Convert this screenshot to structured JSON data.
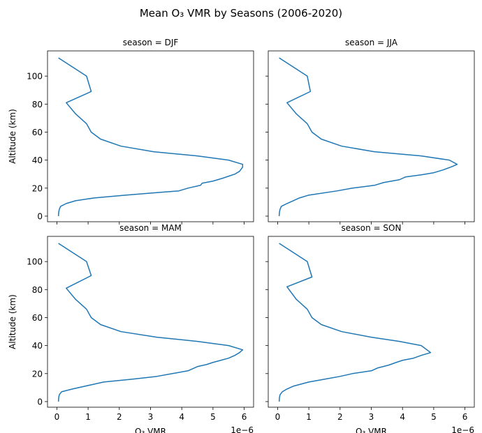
{
  "title": "Mean O₃ VMR by Seasons (2006-2020)",
  "colors": {
    "series": "#1f77b4",
    "axes": "#000000",
    "background": "#ffffff"
  },
  "chart_data": {
    "type": "line",
    "layout": "2x2 facet grid, shared x and y axes",
    "xlabel": "O₃ VMR",
    "ylabel": "Altitude (km)",
    "x_offset_text": "1e−6",
    "xlim": [
      -3e-07,
      6.3e-06
    ],
    "ylim": [
      -4,
      118
    ],
    "x_ticks": [
      0,
      1e-06,
      2e-06,
      3e-06,
      4e-06,
      5e-06,
      6e-06
    ],
    "x_tick_labels": [
      "0",
      "1",
      "2",
      "3",
      "4",
      "5",
      "6"
    ],
    "y_ticks": [
      0,
      20,
      40,
      60,
      80,
      100
    ],
    "y_tick_labels": [
      "0",
      "20",
      "40",
      "60",
      "80",
      "100"
    ],
    "grid": false,
    "panels": [
      {
        "title": "season = DJF",
        "points": [
          [
            5e-08,
            0
          ],
          [
            6e-08,
            3
          ],
          [
            8e-08,
            5
          ],
          [
            1.2e-07,
            7
          ],
          [
            3e-07,
            9
          ],
          [
            6e-07,
            11
          ],
          [
            1.2e-06,
            13
          ],
          [
            2.2e-06,
            15
          ],
          [
            3.3e-06,
            17
          ],
          [
            3.9e-06,
            18
          ],
          [
            4.2e-06,
            20
          ],
          [
            4.6e-06,
            22
          ],
          [
            4.65e-06,
            23.5
          ],
          [
            5e-06,
            25
          ],
          [
            5.3e-06,
            27
          ],
          [
            5.5e-06,
            28.5
          ],
          [
            5.7e-06,
            30
          ],
          [
            5.85e-06,
            32
          ],
          [
            5.95e-06,
            35
          ],
          [
            5.95e-06,
            37
          ],
          [
            5.5e-06,
            40
          ],
          [
            4.5e-06,
            43
          ],
          [
            3.1e-06,
            46
          ],
          [
            2.05e-06,
            50
          ],
          [
            1.4e-06,
            55
          ],
          [
            1.1e-06,
            60
          ],
          [
            9.5e-07,
            66
          ],
          [
            6e-07,
            73
          ],
          [
            3e-07,
            81
          ],
          [
            1.1e-06,
            89
          ],
          [
            9.5e-07,
            100
          ],
          [
            5e-08,
            113
          ]
        ]
      },
      {
        "title": "season = JJA",
        "points": [
          [
            5e-08,
            0
          ],
          [
            6e-08,
            3
          ],
          [
            8e-08,
            5
          ],
          [
            1.2e-07,
            7
          ],
          [
            3e-07,
            9
          ],
          [
            5e-07,
            11
          ],
          [
            7e-07,
            13
          ],
          [
            1e-06,
            15
          ],
          [
            1.9e-06,
            18
          ],
          [
            2.4e-06,
            20
          ],
          [
            3.1e-06,
            22
          ],
          [
            3.4e-06,
            24
          ],
          [
            3.9e-06,
            26
          ],
          [
            4.1e-06,
            28
          ],
          [
            4.6e-06,
            29.5
          ],
          [
            5e-06,
            31
          ],
          [
            5.3e-06,
            33
          ],
          [
            5.6e-06,
            35.5
          ],
          [
            5.75e-06,
            37
          ],
          [
            5.5e-06,
            40
          ],
          [
            4.6e-06,
            43
          ],
          [
            3.1e-06,
            46
          ],
          [
            2.05e-06,
            50
          ],
          [
            1.4e-06,
            55
          ],
          [
            1.1e-06,
            60
          ],
          [
            9.5e-07,
            66
          ],
          [
            6e-07,
            73
          ],
          [
            3e-07,
            81
          ],
          [
            1.05e-06,
            89
          ],
          [
            9.5e-07,
            100
          ],
          [
            5e-08,
            113
          ]
        ]
      },
      {
        "title": "season = MAM",
        "points": [
          [
            5e-08,
            0
          ],
          [
            6e-08,
            3
          ],
          [
            8e-08,
            5
          ],
          [
            1.5e-07,
            7
          ],
          [
            5e-07,
            9
          ],
          [
            1.1e-06,
            12
          ],
          [
            1.5e-06,
            14
          ],
          [
            2.4e-06,
            16
          ],
          [
            3.2e-06,
            18
          ],
          [
            3.7e-06,
            20
          ],
          [
            4.2e-06,
            22
          ],
          [
            4.35e-06,
            23.5
          ],
          [
            4.5e-06,
            25
          ],
          [
            4.8e-06,
            26.5
          ],
          [
            5e-06,
            28
          ],
          [
            5.25e-06,
            29.5
          ],
          [
            5.5e-06,
            31
          ],
          [
            5.7e-06,
            33
          ],
          [
            5.85e-06,
            35
          ],
          [
            5.95e-06,
            37
          ],
          [
            5.5e-06,
            40
          ],
          [
            4.5e-06,
            43
          ],
          [
            3.2e-06,
            46
          ],
          [
            2.05e-06,
            50
          ],
          [
            1.4e-06,
            55
          ],
          [
            1.1e-06,
            60
          ],
          [
            9.5e-07,
            66
          ],
          [
            6e-07,
            73
          ],
          [
            3e-07,
            81
          ],
          [
            1.1e-06,
            90
          ],
          [
            9.5e-07,
            100
          ],
          [
            5e-08,
            113
          ]
        ]
      },
      {
        "title": "season = SON",
        "points": [
          [
            5e-08,
            0
          ],
          [
            6e-08,
            3
          ],
          [
            8e-08,
            5
          ],
          [
            1.5e-07,
            7
          ],
          [
            3e-07,
            9
          ],
          [
            5e-07,
            11
          ],
          [
            1e-06,
            14
          ],
          [
            1.5e-06,
            16
          ],
          [
            2e-06,
            18
          ],
          [
            2.4e-06,
            20
          ],
          [
            3e-06,
            22
          ],
          [
            3.2e-06,
            24
          ],
          [
            3.55e-06,
            26
          ],
          [
            3.8e-06,
            28
          ],
          [
            4e-06,
            29.5
          ],
          [
            4.35e-06,
            31
          ],
          [
            4.6e-06,
            33
          ],
          [
            4.9e-06,
            35
          ],
          [
            4.6e-06,
            40
          ],
          [
            3.9e-06,
            43
          ],
          [
            3e-06,
            46
          ],
          [
            2.05e-06,
            50
          ],
          [
            1.4e-06,
            55
          ],
          [
            1.1e-06,
            60
          ],
          [
            9.5e-07,
            66
          ],
          [
            6e-07,
            73
          ],
          [
            3e-07,
            82
          ],
          [
            1.1e-06,
            89
          ],
          [
            9.5e-07,
            100
          ],
          [
            5e-08,
            113
          ]
        ]
      }
    ]
  }
}
